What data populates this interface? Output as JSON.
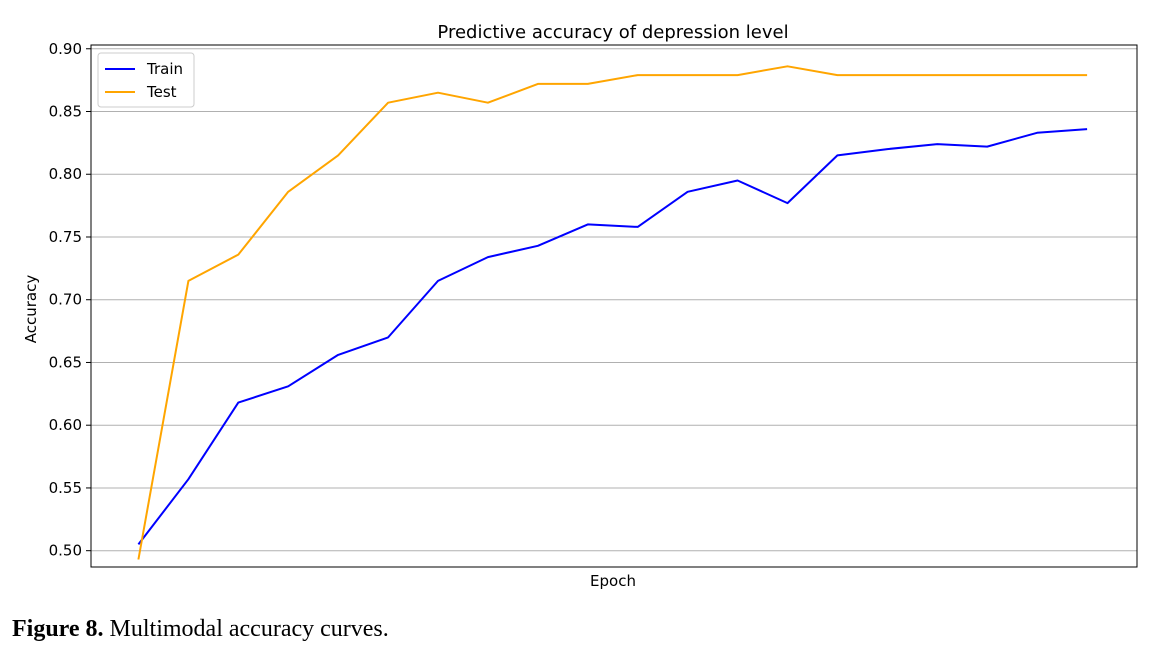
{
  "chart_data": {
    "type": "line",
    "title": "Predictive accuracy of depression level",
    "xlabel": "Epoch",
    "ylabel": "Accuracy",
    "ylim": [
      0.487,
      0.903
    ],
    "yticks": [
      "0.50",
      "0.55",
      "0.60",
      "0.65",
      "0.70",
      "0.75",
      "0.80",
      "0.85",
      "0.90"
    ],
    "ytick_values": [
      0.5,
      0.55,
      0.6,
      0.65,
      0.7,
      0.75,
      0.8,
      0.85,
      0.9
    ],
    "x": [
      1,
      2,
      3,
      4,
      5,
      6,
      7,
      8,
      9,
      10,
      11,
      12,
      13,
      14,
      15,
      16,
      17,
      18,
      19,
      20
    ],
    "xlim": [
      0.05,
      21.0
    ],
    "xtick_labels_shown": false,
    "grid": "horizontal",
    "legend_position": "top-left",
    "series": [
      {
        "name": "Train",
        "color": "#0000ff",
        "values": [
          0.505,
          0.557,
          0.618,
          0.631,
          0.656,
          0.67,
          0.715,
          0.734,
          0.743,
          0.76,
          0.758,
          0.786,
          0.795,
          0.777,
          0.815,
          0.82,
          0.824,
          0.822,
          0.833,
          0.836
        ]
      },
      {
        "name": "Test",
        "color": "#ffa500",
        "values": [
          0.493,
          0.715,
          0.736,
          0.786,
          0.815,
          0.857,
          0.865,
          0.857,
          0.872,
          0.872,
          0.879,
          0.879,
          0.879,
          0.886,
          0.879,
          0.879,
          0.879,
          0.879,
          0.879,
          0.879
        ]
      }
    ]
  },
  "caption": {
    "label": "Figure 8.",
    "text": " Multimodal accuracy curves."
  }
}
